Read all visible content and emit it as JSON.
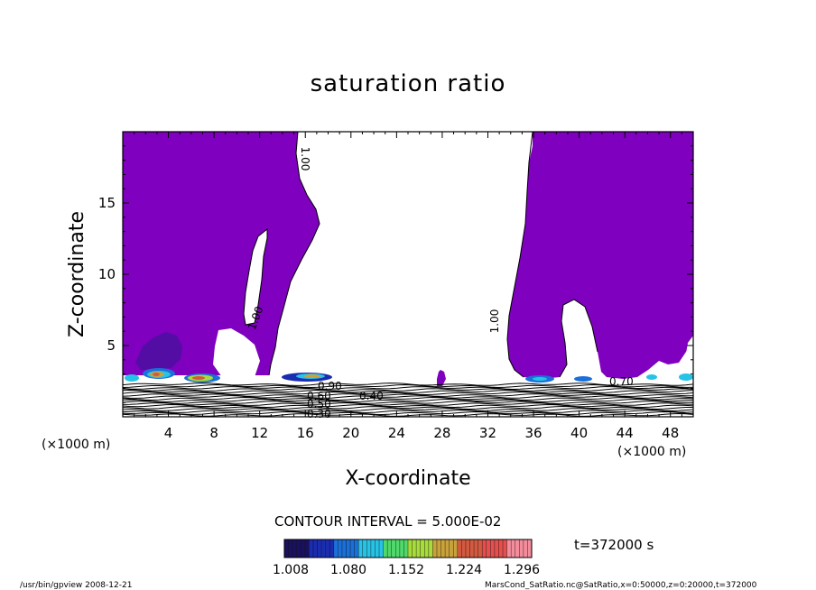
{
  "chart_data": {
    "type": "heatmap",
    "title": "saturation ratio",
    "xlabel": "X-coordinate",
    "ylabel": "Z-coordinate",
    "x_unit": "(×1000 m)",
    "y_unit": "(×1000 m)",
    "xlim": [
      0,
      50
    ],
    "ylim": [
      0,
      20
    ],
    "x_ticks": [
      4,
      8,
      12,
      16,
      20,
      24,
      28,
      32,
      36,
      40,
      44,
      48
    ],
    "y_ticks": [
      5,
      10,
      15
    ],
    "contour_interval": "CONTOUR INTERVAL = 5.000E-02",
    "time_label": "t=372000 s",
    "colorbar": {
      "ticks": [
        "1.008",
        "1.080",
        "1.152",
        "1.224",
        "1.296"
      ],
      "min": 1.008,
      "max": 1.296,
      "colormap": [
        "#1a1060",
        "#1a2cb0",
        "#1b6fd8",
        "#27c3e6",
        "#4fd86b",
        "#a7dc3a",
        "#c9a23b",
        "#d35a3f",
        "#e5504f",
        "#f48c9c"
      ]
    },
    "fill_color": "#7f00bf",
    "contour_labels": [
      "1.00",
      "1.00",
      "1.00",
      "0.90",
      "0.60",
      "0.50",
      "0.30",
      "0.70",
      "0.40"
    ],
    "footer_left": "/usr/bin/gpview   2008-12-21",
    "footer_right": "MarsCond_SatRatio.nc@SatRatio,x=0:50000,z=0:20000,t=372000"
  }
}
